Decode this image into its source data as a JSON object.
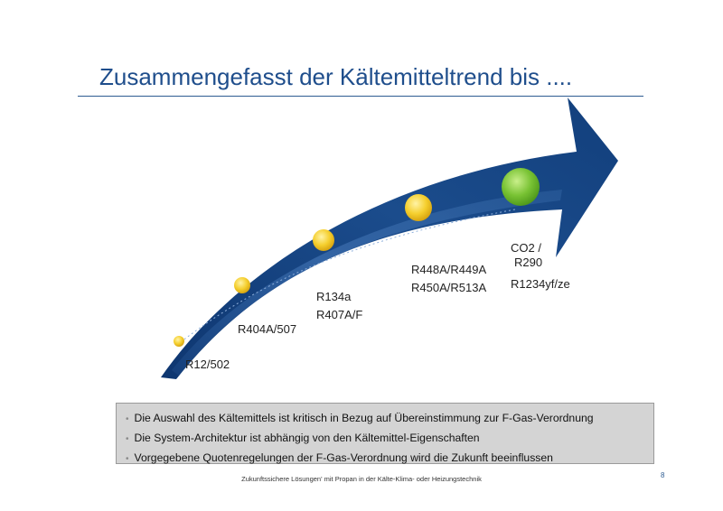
{
  "slide": {
    "title": "Zusammengefasst der Kältemitteltrend bis ....",
    "page_number": "8",
    "footer": "Zukunftssichere Lösungen' mit Propan in der Kälte-Klima- oder Heizungstechnik"
  },
  "trend": {
    "milestones": [
      {
        "lines": [
          "R12/502"
        ],
        "marker": "yellow"
      },
      {
        "lines": [
          "R404A/507"
        ],
        "marker": "yellow"
      },
      {
        "lines": [
          "R134a",
          "R407A/F"
        ],
        "marker": "yellow"
      },
      {
        "lines": [
          "R448A/R449A",
          "R450A/R513A"
        ],
        "marker": "yellow"
      },
      {
        "lines": [
          "CO2 /",
          "R290",
          "R1234yf/ze"
        ],
        "marker": "green"
      }
    ],
    "colors": {
      "arrow_dark": "#123f7c",
      "arrow_light": "#3c6fae",
      "dot_yellow": "#f2c21c",
      "dot_green": "#6fb92c"
    }
  },
  "bullets": [
    "Die Auswahl des Kältemittels ist kritisch in Bezug auf Übereinstimmung zur F-Gas-Verordnung",
    "Die System-Architektur ist abhängig von den Kältemittel-Eigenschaften",
    "Vorgegebene Quotenregelungen der F-Gas-Verordnung wird die Zukunft beeinflussen"
  ],
  "bullet_marker": "•"
}
